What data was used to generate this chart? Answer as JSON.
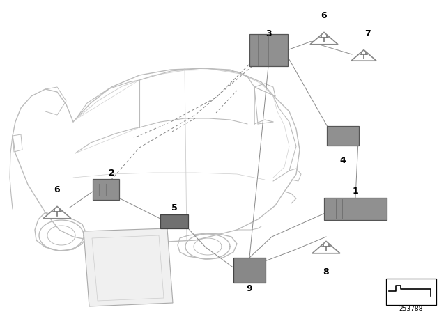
{
  "bg_color": "#ffffff",
  "line_color": "#cccccc",
  "dark_line": "#888888",
  "comp_color": "#909090",
  "comp_edge": "#555555",
  "label_color": "#000000",
  "part_number": "253788",
  "figsize": [
    6.4,
    4.48
  ],
  "dpi": 100,
  "label_fontsize": 8.5,
  "bold_label_fontsize": 9.5,
  "car_line_color": "#bbbbbb",
  "car_detail_color": "#999999"
}
